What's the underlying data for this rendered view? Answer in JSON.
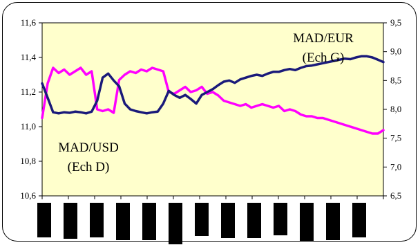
{
  "chart_data": {
    "type": "line",
    "title": "",
    "xlabel": "",
    "ylabel": "",
    "y_left": {
      "min": 10.6,
      "max": 11.6,
      "ticks": [
        "10,6",
        "10,8",
        "11,0",
        "11,2",
        "11,4",
        "11,6"
      ]
    },
    "y_right": {
      "min": 6.5,
      "max": 9.5,
      "ticks": [
        "6,5",
        "7,0",
        "7,5",
        "8,0",
        "8,5",
        "9,0",
        "9,5"
      ]
    },
    "x_categories": 13,
    "x_tick_labels_obscured": true,
    "grid": false,
    "legend": "none",
    "plot_background": "#ffffcc",
    "annotations": [
      {
        "lines": [
          "MAD/EUR",
          "(Ech G)"
        ],
        "series": "MAD/EUR"
      },
      {
        "lines": [
          "MAD/USD",
          "(Ech D)"
        ],
        "series": "MAD/USD"
      }
    ],
    "series": [
      {
        "name": "MAD/EUR",
        "axis": "left",
        "color": "#ff00ff",
        "points": [
          [
            0,
            11.05
          ],
          [
            2,
            11.25
          ],
          [
            4,
            11.34
          ],
          [
            6,
            11.31
          ],
          [
            8,
            11.33
          ],
          [
            10,
            11.3
          ],
          [
            12,
            11.32
          ],
          [
            14,
            11.34
          ],
          [
            16,
            11.3
          ],
          [
            18,
            11.32
          ],
          [
            20,
            11.1
          ],
          [
            22,
            11.09
          ],
          [
            24,
            11.1
          ],
          [
            26,
            11.08
          ],
          [
            28,
            11.27
          ],
          [
            30,
            11.3
          ],
          [
            32,
            11.32
          ],
          [
            34,
            11.31
          ],
          [
            36,
            11.33
          ],
          [
            38,
            11.32
          ],
          [
            40,
            11.34
          ],
          [
            42,
            11.33
          ],
          [
            44,
            11.32
          ],
          [
            46,
            11.2
          ],
          [
            48,
            11.19
          ],
          [
            50,
            11.21
          ],
          [
            52,
            11.23
          ],
          [
            54,
            11.2
          ],
          [
            56,
            11.21
          ],
          [
            58,
            11.23
          ],
          [
            60,
            11.19
          ],
          [
            62,
            11.2
          ],
          [
            64,
            11.18
          ],
          [
            66,
            11.15
          ],
          [
            68,
            11.14
          ],
          [
            70,
            11.13
          ],
          [
            72,
            11.12
          ],
          [
            74,
            11.13
          ],
          [
            76,
            11.11
          ],
          [
            78,
            11.12
          ],
          [
            80,
            11.13
          ],
          [
            82,
            11.12
          ],
          [
            84,
            11.11
          ],
          [
            86,
            11.12
          ],
          [
            88,
            11.09
          ],
          [
            90,
            11.1
          ],
          [
            92,
            11.09
          ],
          [
            94,
            11.07
          ],
          [
            96,
            11.06
          ],
          [
            98,
            11.06
          ],
          [
            100,
            11.05
          ],
          [
            102,
            11.05
          ],
          [
            104,
            11.04
          ],
          [
            106,
            11.03
          ],
          [
            108,
            11.02
          ],
          [
            110,
            11.01
          ],
          [
            112,
            11.0
          ],
          [
            114,
            10.99
          ],
          [
            116,
            10.98
          ],
          [
            118,
            10.97
          ],
          [
            120,
            10.96
          ],
          [
            122,
            10.96
          ],
          [
            124,
            10.98
          ]
        ]
      },
      {
        "name": "MAD/USD",
        "axis": "right",
        "color": "#1a1a7a",
        "points": [
          [
            0,
            8.45
          ],
          [
            2,
            8.2
          ],
          [
            4,
            7.95
          ],
          [
            6,
            7.93
          ],
          [
            8,
            7.95
          ],
          [
            10,
            7.94
          ],
          [
            12,
            7.96
          ],
          [
            14,
            7.95
          ],
          [
            16,
            7.93
          ],
          [
            18,
            7.96
          ],
          [
            20,
            8.15
          ],
          [
            22,
            8.55
          ],
          [
            24,
            8.62
          ],
          [
            26,
            8.5
          ],
          [
            28,
            8.4
          ],
          [
            30,
            8.1
          ],
          [
            32,
            8.0
          ],
          [
            34,
            7.97
          ],
          [
            36,
            7.95
          ],
          [
            38,
            7.93
          ],
          [
            40,
            7.95
          ],
          [
            42,
            7.96
          ],
          [
            44,
            8.1
          ],
          [
            46,
            8.32
          ],
          [
            48,
            8.25
          ],
          [
            50,
            8.2
          ],
          [
            52,
            8.25
          ],
          [
            54,
            8.18
          ],
          [
            56,
            8.1
          ],
          [
            58,
            8.25
          ],
          [
            60,
            8.3
          ],
          [
            62,
            8.35
          ],
          [
            64,
            8.42
          ],
          [
            66,
            8.48
          ],
          [
            68,
            8.5
          ],
          [
            70,
            8.46
          ],
          [
            72,
            8.52
          ],
          [
            74,
            8.55
          ],
          [
            76,
            8.58
          ],
          [
            78,
            8.6
          ],
          [
            80,
            8.58
          ],
          [
            82,
            8.62
          ],
          [
            84,
            8.65
          ],
          [
            86,
            8.65
          ],
          [
            88,
            8.68
          ],
          [
            90,
            8.7
          ],
          [
            92,
            8.68
          ],
          [
            94,
            8.72
          ],
          [
            96,
            8.75
          ],
          [
            98,
            8.76
          ],
          [
            100,
            8.78
          ],
          [
            102,
            8.8
          ],
          [
            104,
            8.82
          ],
          [
            106,
            8.84
          ],
          [
            108,
            8.86
          ],
          [
            110,
            8.88
          ],
          [
            112,
            8.87
          ],
          [
            114,
            8.9
          ],
          [
            116,
            8.92
          ],
          [
            118,
            8.92
          ],
          [
            120,
            8.9
          ],
          [
            122,
            8.86
          ],
          [
            124,
            8.82
          ]
        ]
      }
    ]
  }
}
